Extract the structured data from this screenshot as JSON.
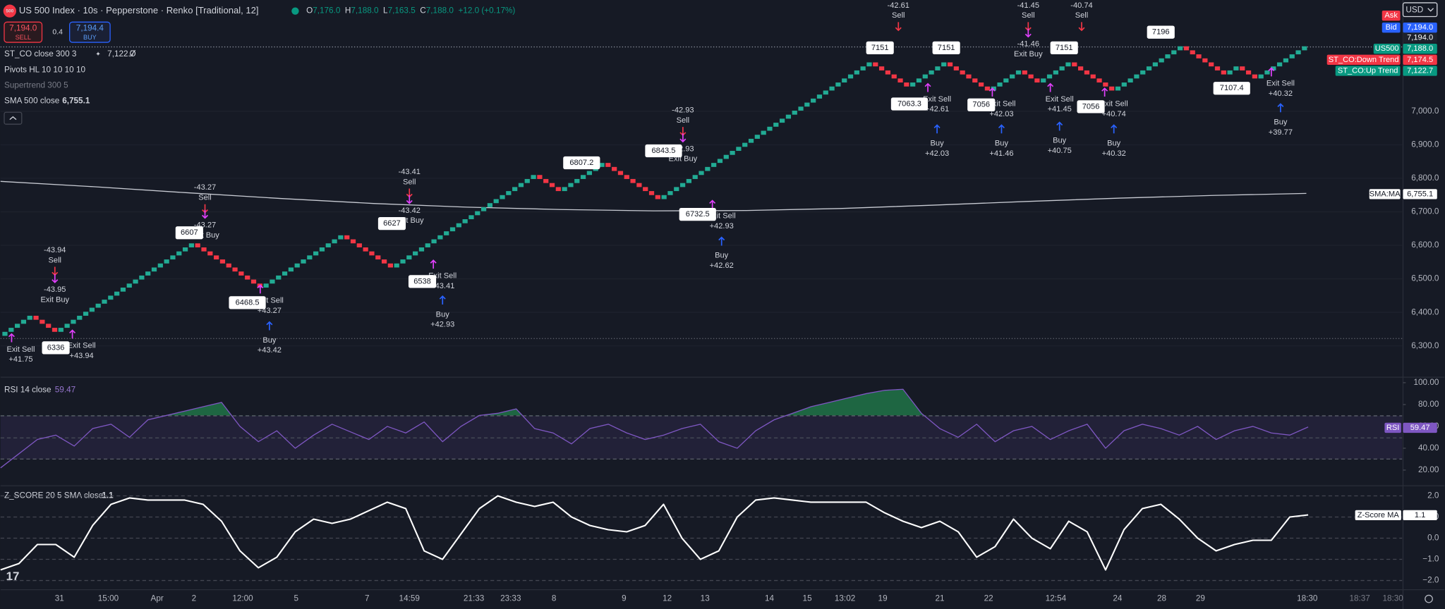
{
  "header": {
    "badge": "500",
    "title": "US 500 Index · 10s · Pepperstone · Renko [Traditional, 12]",
    "ohlc": [
      {
        "label": "O",
        "value": "7,176.0"
      },
      {
        "label": "H",
        "value": "7,188.0"
      },
      {
        "label": "L",
        "value": "7,163.5"
      },
      {
        "label": "C",
        "value": "7,188.0"
      }
    ],
    "change": "+12.0 (+0.17%)",
    "currency": "USD"
  },
  "trade": {
    "sell_price": "7,194.0",
    "sell": "SELL",
    "spread": "0.4",
    "buy_price": "7,194.4",
    "buy": "BUY"
  },
  "indicators": [
    {
      "name": "ST_CO close 300 3",
      "value": "7,122.7",
      "extra": "Ø"
    },
    {
      "name": "Pivots HL 10 10 10 10"
    },
    {
      "name": "Supertrend 300 5"
    },
    {
      "name": "SMA 500 close",
      "value": "6,755.1"
    }
  ],
  "price_axis": {
    "ticks": [
      {
        "value": 7000,
        "label": "7,000.0"
      },
      {
        "value": 6900,
        "label": "6,900.0"
      },
      {
        "value": 6800,
        "label": "6,800.0"
      },
      {
        "value": 6700,
        "label": "6,700.0"
      },
      {
        "value": 6600,
        "label": "6,600.0"
      },
      {
        "value": 6500,
        "label": "6,500.0"
      },
      {
        "value": 6400,
        "label": "6,400.0"
      },
      {
        "value": 6300,
        "label": "6,300.0"
      }
    ]
  },
  "price_labels": [
    {
      "label": "Ask"
    },
    {
      "label": "Bid",
      "value": "7,194.0"
    },
    {
      "value": "7,194.0"
    },
    {
      "label": "US500",
      "value": "7,188.0"
    },
    {
      "label": "ST_CO:Down Trend",
      "value": "7,174.5"
    },
    {
      "label": "ST_CO:Up Trend",
      "value": "7,122.7"
    },
    {
      "label": "SMA:MA",
      "value": "6,755.1"
    }
  ],
  "renko": {
    "pivots": [
      6330,
      6390,
      6342,
      6606,
      6474,
      6630,
      6534,
      6810,
      6762,
      6786,
      6846,
      6738,
      7146,
      7074,
      7146,
      7062,
      7122,
      7086,
      7146,
      7062,
      7194,
      7110,
      7134,
      7098,
      7194
    ]
  },
  "sma": {
    "values": [
      6791,
      6775,
      6757,
      6740,
      6725,
      6714,
      6707,
      6703,
      6704,
      6710,
      6720,
      6731,
      6741,
      6749,
      6755.1
    ]
  },
  "sell_signals": [
    {
      "value": "-43.94",
      "label": "Sell"
    },
    {
      "value": "-43.27",
      "label": "Sell"
    },
    {
      "value": "-43.41",
      "label": "Sell"
    },
    {
      "value": "-42.93",
      "label": "Sell"
    },
    {
      "value": "-42.61",
      "label": "Sell"
    },
    {
      "value": "-41.45",
      "label": "Sell"
    },
    {
      "value": "-40.74",
      "label": "Sell"
    }
  ],
  "exit_buy": [
    {
      "value": "-43.95",
      "label": "Exit Buy"
    },
    {
      "value": "-43.27",
      "label": "Exit Buy"
    },
    {
      "value": "-43.42",
      "label": "Exit Buy"
    },
    {
      "value": "-42.93",
      "label": "Exit Buy"
    },
    {
      "value": "-41.46",
      "label": "Exit Buy"
    }
  ],
  "buy_signals": [
    {
      "label": "Buy",
      "value": "+43.42"
    },
    {
      "label": "Buy",
      "value": "+42.93"
    },
    {
      "label": "Buy",
      "value": "+42.62"
    },
    {
      "label": "Buy",
      "value": "+42.03"
    },
    {
      "label": "Buy",
      "value": "+41.46"
    },
    {
      "label": "Buy",
      "value": "+40.75"
    },
    {
      "label": "Buy",
      "value": "+40.32"
    },
    {
      "label": "Buy",
      "value": "+39.77"
    }
  ],
  "exit_sell": [
    {
      "label": "Exit Sell",
      "value": "+41.75"
    },
    {
      "label": "Exit Sell",
      "value": "+43.94"
    },
    {
      "label": "Exit Sell",
      "value": "+43.27"
    },
    {
      "label": "Exit Sell",
      "value": "+43.41"
    },
    {
      "label": "Exit Sell",
      "value": "+42.93"
    },
    {
      "label": "Exit Sell",
      "value": "+42.61"
    },
    {
      "label": "Exit Sell",
      "value": "+42.03"
    },
    {
      "label": "Exit Sell",
      "value": "+41.45"
    },
    {
      "label": "Exit Sell",
      "value": "+40.74"
    },
    {
      "label": "Exit Sell",
      "value": "+40.32"
    }
  ],
  "pivot_labels": [
    "6336",
    "6468.5",
    "6607",
    "6627",
    "6538",
    "6807.2",
    "6843.5",
    "6732.5",
    "7151",
    "7063.3",
    "7151",
    "7056",
    "7151",
    "7056",
    "7196",
    "7107.4"
  ],
  "rsi": {
    "legend": "RSI 14 close",
    "value": "59.47",
    "tag": "RSI",
    "ticks": [
      {
        "value": 100,
        "label": "100.00"
      },
      {
        "value": 80,
        "label": "80.00"
      },
      {
        "value": 60,
        "label": "60.00"
      },
      {
        "value": 40,
        "label": "40.00"
      },
      {
        "value": 20,
        "label": "20.00"
      }
    ],
    "values": [
      22,
      35,
      48,
      52,
      42,
      58,
      62,
      50,
      66,
      70,
      74,
      78,
      82,
      60,
      46,
      56,
      40,
      52,
      62,
      55,
      48,
      60,
      54,
      64,
      46,
      60,
      70,
      72,
      76,
      58,
      54,
      44,
      58,
      62,
      54,
      48,
      52,
      58,
      62,
      46,
      40,
      56,
      66,
      72,
      78,
      82,
      86,
      90,
      93,
      94,
      72,
      58,
      50,
      62,
      46,
      56,
      60,
      48,
      56,
      62,
      40,
      56,
      62,
      58,
      52,
      60,
      48,
      56,
      60,
      54,
      52,
      59.47
    ]
  },
  "zscore": {
    "legend": "Z_SCORE 20 5 SMA close",
    "value": "1.1",
    "tag": "Z-Score MA",
    "ticks": [
      {
        "value": 2,
        "label": "2.0"
      },
      {
        "value": 1,
        "label": "1.0"
      },
      {
        "value": 0,
        "label": "0.0"
      },
      {
        "value": -1,
        "label": "−1.0"
      },
      {
        "value": -2,
        "label": "−2.0"
      }
    ],
    "values": [
      -1.5,
      -1.2,
      -0.3,
      -0.3,
      -0.9,
      0.6,
      1.6,
      1.9,
      1.8,
      1.8,
      1.8,
      1.6,
      0.8,
      -0.6,
      -1.4,
      -0.9,
      0.3,
      0.9,
      0.7,
      0.9,
      1.3,
      1.7,
      1.4,
      -0.6,
      -1.0,
      0.2,
      1.4,
      2.0,
      1.7,
      1.5,
      1.7,
      1.0,
      0.6,
      0.4,
      0.3,
      0.6,
      1.6,
      0.0,
      -1.0,
      -0.6,
      1.0,
      1.8,
      1.9,
      1.8,
      1.7,
      1.7,
      1.7,
      1.7,
      1.2,
      0.8,
      0.5,
      0.8,
      0.3,
      -0.9,
      -0.4,
      0.9,
      0.0,
      -0.5,
      0.8,
      0.3,
      -1.5,
      0.4,
      1.4,
      1.6,
      0.9,
      0.0,
      -0.6,
      -0.3,
      -0.1,
      -0.1,
      1.0,
      1.1
    ]
  },
  "time_axis": [
    "31",
    "15:00",
    "Apr",
    "2",
    "12:00",
    "5",
    "7",
    "14:59",
    "21:33",
    "23:33",
    "8",
    "9",
    "12",
    "13",
    "14",
    "15",
    "13:02",
    "19",
    "21",
    "22",
    "12:54",
    "24",
    "28",
    "29",
    "18:30",
    "18:37",
    "18:30"
  ]
}
